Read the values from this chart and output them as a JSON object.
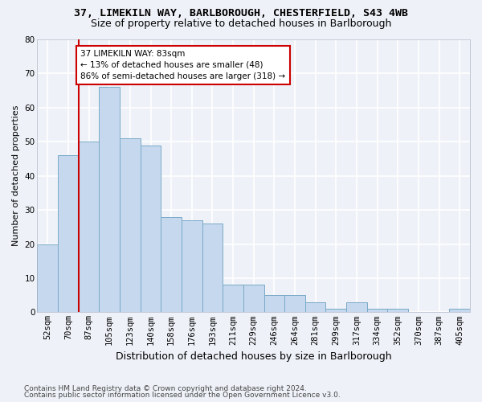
{
  "title1": "37, LIMEKILN WAY, BARLBOROUGH, CHESTERFIELD, S43 4WB",
  "title2": "Size of property relative to detached houses in Barlborough",
  "xlabel": "Distribution of detached houses by size in Barlborough",
  "ylabel": "Number of detached properties",
  "categories": [
    "52sqm",
    "70sqm",
    "87sqm",
    "105sqm",
    "123sqm",
    "140sqm",
    "158sqm",
    "176sqm",
    "193sqm",
    "211sqm",
    "229sqm",
    "246sqm",
    "264sqm",
    "281sqm",
    "299sqm",
    "317sqm",
    "334sqm",
    "352sqm",
    "370sqm",
    "387sqm",
    "405sqm"
  ],
  "values": [
    20,
    46,
    50,
    66,
    51,
    49,
    28,
    27,
    26,
    8,
    8,
    5,
    5,
    3,
    1,
    3,
    1,
    1,
    0,
    0,
    1
  ],
  "bar_color": "#c5d8ed",
  "bar_edge_color": "#7aaac8",
  "annotation_text": "37 LIMEKILN WAY: 83sqm\n← 13% of detached houses are smaller (48)\n86% of semi-detached houses are larger (318) →",
  "annotation_box_color": "#ffffff",
  "annotation_box_edge": "#cc0000",
  "vline_color": "#cc0000",
  "ylim": [
    0,
    80
  ],
  "yticks": [
    0,
    10,
    20,
    30,
    40,
    50,
    60,
    70,
    80
  ],
  "footnote1": "Contains HM Land Registry data © Crown copyright and database right 2024.",
  "footnote2": "Contains public sector information licensed under the Open Government Licence v3.0.",
  "bg_color": "#eef2f8",
  "grid_color": "#ffffff",
  "title1_fontsize": 9.5,
  "title2_fontsize": 9,
  "xlabel_fontsize": 9,
  "ylabel_fontsize": 8,
  "tick_fontsize": 7.5,
  "footnote_fontsize": 6.5
}
